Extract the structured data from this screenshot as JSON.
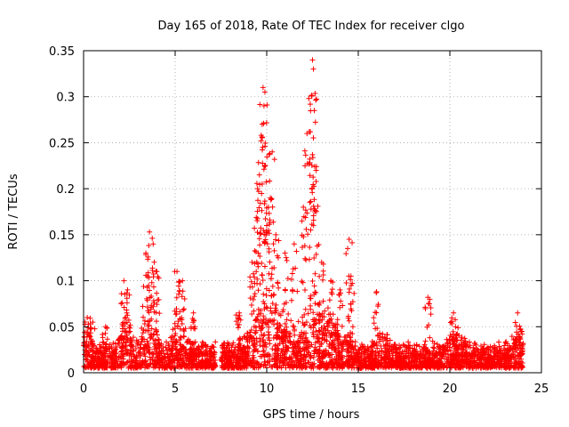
{
  "chart_data": {
    "type": "scatter",
    "title": "Day 165 of 2018, Rate Of TEC Index for receiver clgo",
    "xlabel": "GPS time / hours",
    "ylabel": "ROTI / TECUs",
    "xlim": [
      0,
      25
    ],
    "ylim": [
      0,
      0.35
    ],
    "xticks": [
      0,
      5,
      10,
      15,
      20,
      25
    ],
    "yticks": [
      0,
      0.05,
      0.1,
      0.15,
      0.2,
      0.25,
      0.3,
      0.35
    ],
    "xtick_labels": [
      "0",
      "5",
      "10",
      "15",
      "20",
      "25"
    ],
    "ytick_labels": [
      "0",
      "0.05",
      "0.1",
      "0.15",
      "0.2",
      "0.25",
      "0.3",
      "0.35"
    ],
    "grid": true,
    "legend": "none",
    "marker": "+",
    "series_color": "#ff0000",
    "gap_hours": [
      7.2,
      7.5
    ],
    "features": [
      {
        "x": 0.2,
        "y": 0.06
      },
      {
        "x": 0.5,
        "y": 0.055
      },
      {
        "x": 1.2,
        "y": 0.05
      },
      {
        "x": 2.2,
        "y": 0.1
      },
      {
        "x": 2.4,
        "y": 0.09
      },
      {
        "x": 3.4,
        "y": 0.13
      },
      {
        "x": 3.6,
        "y": 0.153
      },
      {
        "x": 3.8,
        "y": 0.14
      },
      {
        "x": 4.0,
        "y": 0.11
      },
      {
        "x": 5.1,
        "y": 0.11
      },
      {
        "x": 5.4,
        "y": 0.1
      },
      {
        "x": 6.0,
        "y": 0.065
      },
      {
        "x": 8.5,
        "y": 0.065
      },
      {
        "x": 9.2,
        "y": 0.12
      },
      {
        "x": 9.5,
        "y": 0.2
      },
      {
        "x": 9.6,
        "y": 0.215
      },
      {
        "x": 9.7,
        "y": 0.258
      },
      {
        "x": 9.8,
        "y": 0.31
      },
      {
        "x": 9.9,
        "y": 0.305
      },
      {
        "x": 9.85,
        "y": 0.29
      },
      {
        "x": 10.0,
        "y": 0.16
      },
      {
        "x": 10.2,
        "y": 0.19
      },
      {
        "x": 10.3,
        "y": 0.24
      },
      {
        "x": 10.5,
        "y": 0.15
      },
      {
        "x": 11.0,
        "y": 0.13
      },
      {
        "x": 11.5,
        "y": 0.14
      },
      {
        "x": 12.0,
        "y": 0.18
      },
      {
        "x": 12.2,
        "y": 0.26
      },
      {
        "x": 12.3,
        "y": 0.298
      },
      {
        "x": 12.5,
        "y": 0.34
      },
      {
        "x": 12.55,
        "y": 0.33
      },
      {
        "x": 12.6,
        "y": 0.285
      },
      {
        "x": 12.7,
        "y": 0.22
      },
      {
        "x": 13.0,
        "y": 0.12
      },
      {
        "x": 13.5,
        "y": 0.1
      },
      {
        "x": 14.0,
        "y": 0.09
      },
      {
        "x": 14.5,
        "y": 0.145
      },
      {
        "x": 14.6,
        "y": 0.105
      },
      {
        "x": 16.0,
        "y": 0.088
      },
      {
        "x": 18.8,
        "y": 0.082
      },
      {
        "x": 20.2,
        "y": 0.065
      },
      {
        "x": 23.7,
        "y": 0.065
      }
    ]
  }
}
